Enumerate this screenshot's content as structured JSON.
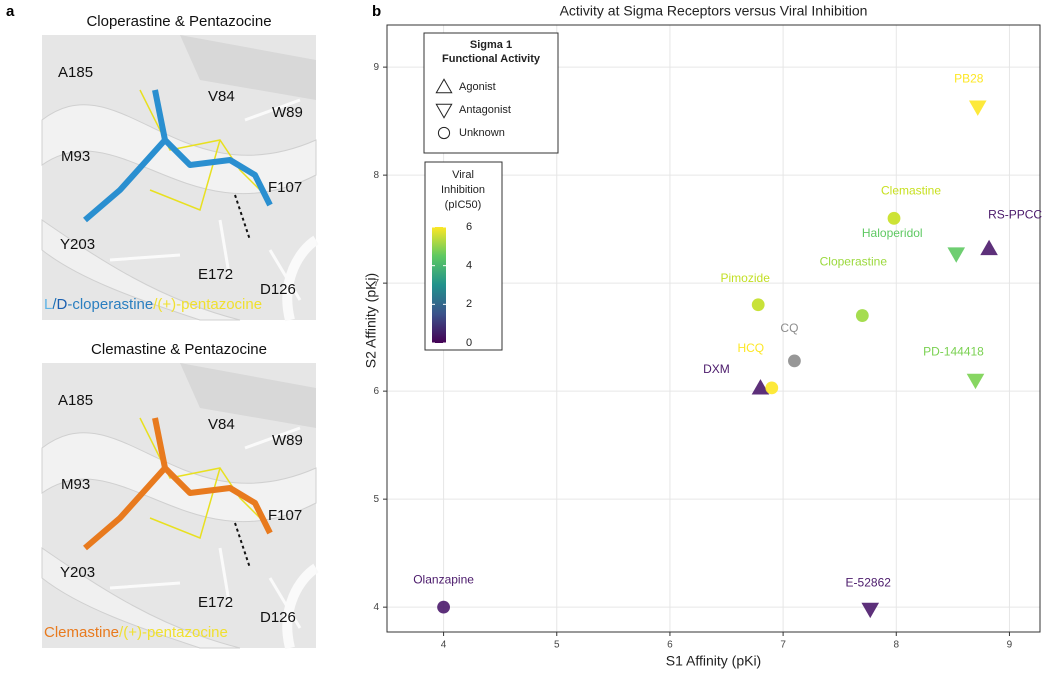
{
  "panel_a": {
    "label": "a",
    "images": [
      {
        "title": "Cloperastine & Pentazocine",
        "residues": [
          "A185",
          "V84",
          "W89",
          "M93",
          "F107",
          "Y203",
          "E172",
          "D126"
        ],
        "caption": [
          {
            "text": "L",
            "color": "#5fb4e6"
          },
          {
            "text": "/",
            "color": "#1a6fb5"
          },
          {
            "text": "D",
            "color": "#1a5fb0"
          },
          {
            "text": "-cloperastine",
            "color": "#2a7fc0"
          },
          {
            "text": "/(+)-pentazocine",
            "color": "#f0e030"
          }
        ]
      },
      {
        "title": "Clemastine & Pentazocine",
        "residues": [
          "A185",
          "V84",
          "W89",
          "M93",
          "F107",
          "Y203",
          "E172",
          "D126"
        ],
        "caption": [
          {
            "text": "Clemastine",
            "color": "#e87a1e"
          },
          {
            "text": "/(+)-pentazocine",
            "color": "#f0e030"
          }
        ]
      }
    ]
  },
  "chart_data": {
    "type": "scatter",
    "label": "b",
    "title": "Activity at Sigma Receptors versus Viral Inhibition",
    "xlabel": "S1 Affinity (pKi)",
    "ylabel": "S2 Affinity (pKi)",
    "labels": [
      "Olanzapine",
      "E-52862",
      "DXM",
      "HCQ",
      "CQ",
      "Pimozide",
      "Cloperastine",
      "Clemastine",
      "Haloperidol",
      "RS-PPCC",
      "PD-144418",
      "PB28"
    ],
    "x": [
      4.0,
      7.77,
      6.8,
      6.9,
      7.1,
      6.78,
      7.7,
      7.98,
      8.53,
      8.82,
      8.7,
      8.72
    ],
    "values": [
      4.0,
      3.98,
      6.03,
      6.03,
      6.28,
      6.8,
      6.7,
      7.6,
      7.27,
      7.32,
      6.1,
      8.63
    ],
    "colors": [
      "#4b1a6b",
      "#4b1a6b",
      "#4b1a6b",
      "#fde725",
      "#8c8c8c",
      "#c2df23",
      "#9bd93c",
      "#c8e020",
      "#5ec962",
      "#4b1a6b",
      "#7ad151",
      "#fde725"
    ],
    "markers": [
      "circle",
      "triangle-down",
      "triangle-up",
      "circle",
      "circle",
      "circle",
      "circle",
      "circle",
      "triangle-down",
      "triangle-up",
      "triangle-down",
      "triangle-down"
    ],
    "xlim": [
      3.5,
      9.27
    ],
    "ylim": [
      3.77,
      9.39
    ],
    "xticks": [
      4,
      5,
      6,
      7,
      8,
      9
    ],
    "yticks": [
      4,
      5,
      6,
      7,
      8,
      9
    ],
    "grid": true,
    "marker_legend": {
      "title": [
        "Sigma 1",
        "Functional Activity"
      ],
      "items": [
        {
          "label": "Agonist",
          "marker": "triangle-up"
        },
        {
          "label": "Antagonist",
          "marker": "triangle-down"
        },
        {
          "label": "Unknown",
          "marker": "circle"
        }
      ]
    },
    "colorbar": {
      "title": [
        "Viral",
        "Inhibition",
        "(pIC50)"
      ],
      "lim": [
        0,
        6
      ],
      "ticks": [
        0,
        2,
        4,
        6
      ],
      "colors": [
        "#440154",
        "#3b528b",
        "#21918c",
        "#5ec962",
        "#fde725"
      ]
    }
  }
}
